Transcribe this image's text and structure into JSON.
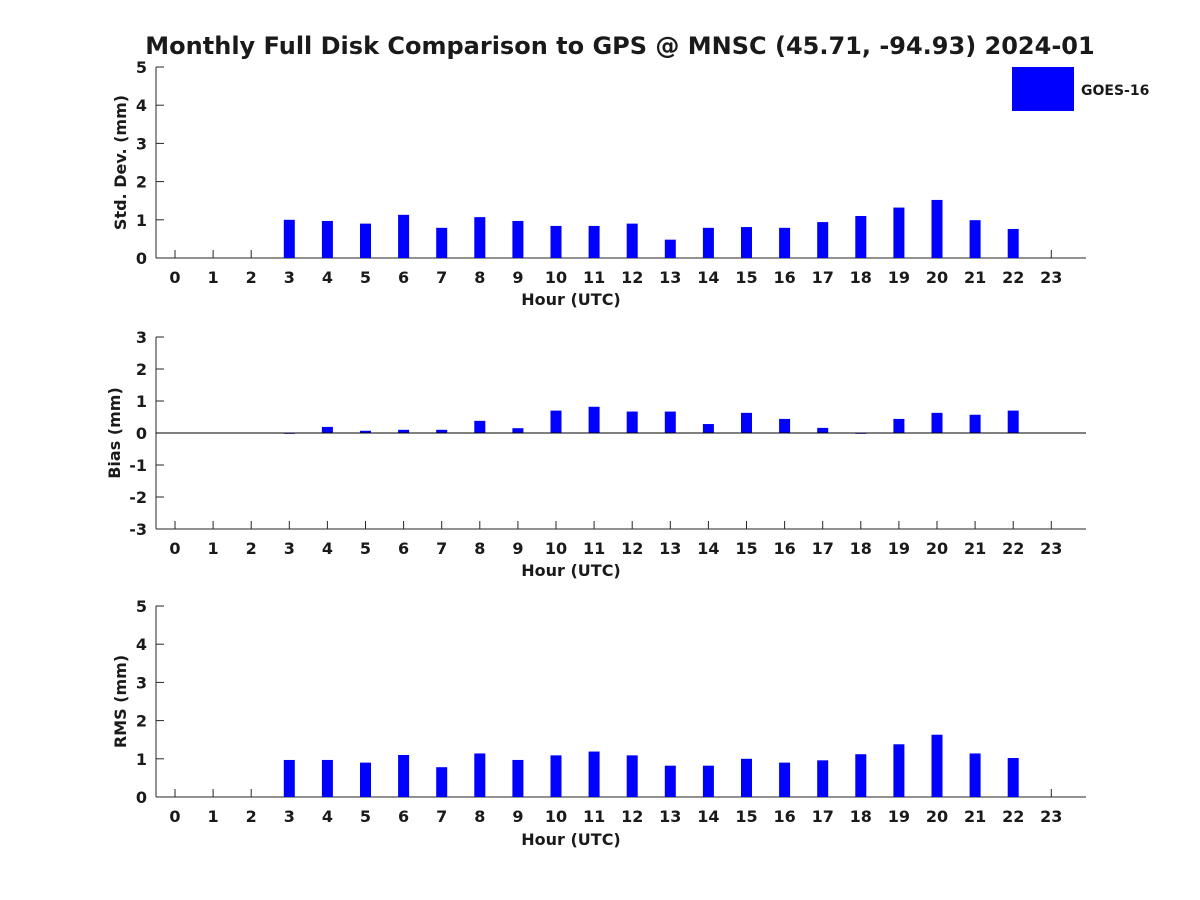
{
  "figure": {
    "title": "Monthly Full Disk Comparison to GPS @ MNSC (45.71, -94.93) 2024-01",
    "bar_color": "#0000ff"
  },
  "legend": {
    "label": "GOES-16",
    "swatch_color": "#0000ff"
  },
  "chart_data": [
    {
      "type": "bar",
      "id": "stddev",
      "title": "Monthly Full Disk Comparison to GPS @ MNSC (45.71, -94.93) 2024-01",
      "xlabel": "Hour (UTC)",
      "ylabel": "Std. Dev. (mm)",
      "ylim": [
        0,
        5
      ],
      "yticks": [
        0,
        1,
        2,
        3,
        4,
        5
      ],
      "categories": [
        0,
        1,
        2,
        3,
        4,
        5,
        6,
        7,
        8,
        9,
        10,
        11,
        12,
        13,
        14,
        15,
        16,
        17,
        18,
        19,
        20,
        21,
        22,
        23
      ],
      "series": [
        {
          "name": "GOES-16",
          "values": [
            null,
            null,
            null,
            1.0,
            0.97,
            0.9,
            1.13,
            0.79,
            1.07,
            0.97,
            0.84,
            0.84,
            0.9,
            0.48,
            0.79,
            0.81,
            0.79,
            0.94,
            1.1,
            1.32,
            1.52,
            0.99,
            0.76,
            null
          ]
        }
      ]
    },
    {
      "type": "bar",
      "id": "bias",
      "xlabel": "Hour (UTC)",
      "ylabel": "Bias (mm)",
      "ylim": [
        -3,
        3
      ],
      "yticks": [
        -3,
        -2,
        -1,
        0,
        1,
        2,
        3
      ],
      "categories": [
        0,
        1,
        2,
        3,
        4,
        5,
        6,
        7,
        8,
        9,
        10,
        11,
        12,
        13,
        14,
        15,
        16,
        17,
        18,
        19,
        20,
        21,
        22,
        23
      ],
      "series": [
        {
          "name": "GOES-16",
          "values": [
            null,
            null,
            null,
            -0.02,
            0.19,
            0.07,
            0.1,
            0.1,
            0.38,
            0.15,
            0.7,
            0.82,
            0.67,
            0.67,
            0.28,
            0.63,
            0.44,
            0.16,
            -0.02,
            0.44,
            0.63,
            0.57,
            0.7,
            null
          ]
        }
      ]
    },
    {
      "type": "bar",
      "id": "rms",
      "xlabel": "Hour (UTC)",
      "ylabel": "RMS (mm)",
      "ylim": [
        0,
        5
      ],
      "yticks": [
        0,
        1,
        2,
        3,
        4,
        5
      ],
      "categories": [
        0,
        1,
        2,
        3,
        4,
        5,
        6,
        7,
        8,
        9,
        10,
        11,
        12,
        13,
        14,
        15,
        16,
        17,
        18,
        19,
        20,
        21,
        22,
        23
      ],
      "series": [
        {
          "name": "GOES-16",
          "values": [
            null,
            null,
            null,
            0.97,
            0.97,
            0.9,
            1.1,
            0.78,
            1.14,
            0.97,
            1.09,
            1.19,
            1.09,
            0.82,
            0.82,
            1.0,
            0.9,
            0.96,
            1.12,
            1.38,
            1.63,
            1.14,
            1.02,
            null
          ]
        }
      ]
    }
  ]
}
